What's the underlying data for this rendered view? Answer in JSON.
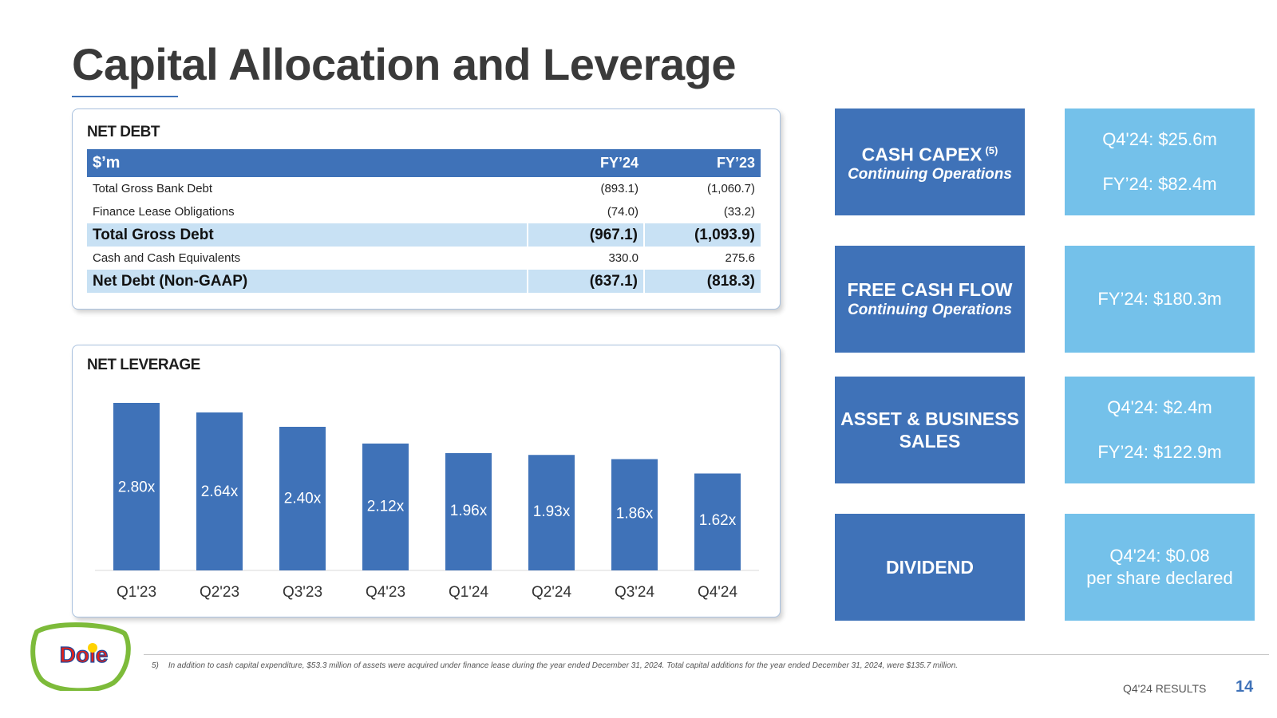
{
  "page": {
    "title": "Capital Allocation and Leverage"
  },
  "net_debt": {
    "heading": "NET DEBT",
    "columns": [
      "$’m",
      "FY’24",
      "FY’23"
    ],
    "rows": [
      {
        "label": "Total Gross Bank Debt",
        "fy24": "(893.1)",
        "fy23": "(1,060.7)",
        "highlight": false
      },
      {
        "label": "Finance Lease Obligations",
        "fy24": "(74.0)",
        "fy23": "(33.2)",
        "highlight": false
      },
      {
        "label": "Total Gross Debt",
        "fy24": "(967.1)",
        "fy23": "(1,093.9)",
        "highlight": true
      },
      {
        "label": "Cash and Cash Equivalents",
        "fy24": "330.0",
        "fy23": "275.6",
        "highlight": false
      },
      {
        "label": "Net Debt (Non-GAAP)",
        "fy24": "(637.1)",
        "fy23": "(818.3)",
        "highlight": true
      }
    ]
  },
  "net_leverage": {
    "heading": "NET LEVERAGE"
  },
  "chart_data": {
    "type": "bar",
    "title": "NET LEVERAGE",
    "categories": [
      "Q1'23",
      "Q2'23",
      "Q3'23",
      "Q4'23",
      "Q1'24",
      "Q2'24",
      "Q3'24",
      "Q4'24"
    ],
    "values": [
      2.8,
      2.64,
      2.4,
      2.12,
      1.96,
      1.93,
      1.86,
      1.62
    ],
    "data_labels": [
      "2.80x",
      "2.64x",
      "2.40x",
      "2.12x",
      "1.96x",
      "1.93x",
      "1.86x",
      "1.62x"
    ],
    "ylim": [
      0,
      2.8
    ],
    "grid": false,
    "bar_color": "#3f72b8"
  },
  "tiles": [
    {
      "id": "capex",
      "label": "CASH CAPEX",
      "sup": "(5)",
      "sub": "Continuing Operations",
      "values": [
        "Q4'24: $25.6m",
        "FY’24: $82.4m"
      ]
    },
    {
      "id": "fcf",
      "label": "FREE CASH FLOW",
      "sub": "Continuing Operations",
      "values": [
        "FY’24: $180.3m"
      ]
    },
    {
      "id": "asset",
      "label_lines": [
        "ASSET & BUSINESS",
        "SALES"
      ],
      "values": [
        "Q4'24: $2.4m",
        "FY’24: $122.9m"
      ]
    },
    {
      "id": "dividend",
      "label": "DIVIDEND",
      "values": [
        "Q4'24: $0.08",
        "per share declared"
      ]
    }
  ],
  "colors": {
    "primary_blue": "#3f72b8",
    "light_blue": "#74c1ea",
    "highlight_row": "#c8e1f4"
  },
  "footnote": {
    "number": "5)",
    "text": "In addition to cash capital expenditure, $53.3 million of assets were acquired under finance lease during the year ended December 31, 2024. Total capital additions for the year ended December 31, 2024, were $135.7 million."
  },
  "footer": {
    "label": "Q4'24 RESULTS",
    "page_number": "14"
  },
  "logo": {
    "text": "Dole"
  }
}
